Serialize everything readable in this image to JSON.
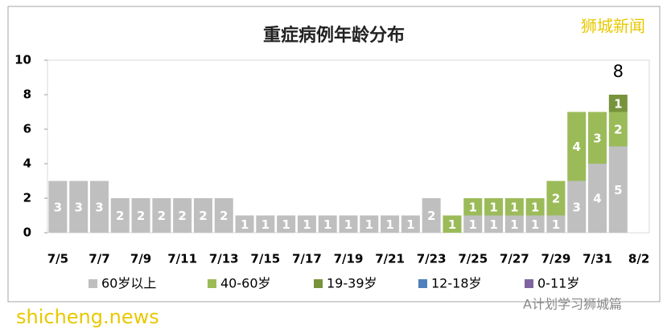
{
  "chart_data": {
    "type": "stacked_bar",
    "title": "重症病例年龄分布",
    "categories": [
      "7/5",
      null,
      "7/7",
      null,
      "7/9",
      null,
      "7/11",
      null,
      "7/13",
      null,
      "7/15",
      null,
      "7/17",
      null,
      "7/19",
      null,
      "7/21",
      null,
      "7/23",
      null,
      "7/25",
      null,
      "7/27",
      null,
      "7/29",
      null,
      "7/31",
      null,
      "8/2"
    ],
    "series": [
      {
        "name": "60岁以上",
        "color": "#bfbfbf",
        "values": [
          3,
          3,
          3,
          2,
          2,
          2,
          2,
          2,
          2,
          1,
          1,
          1,
          1,
          1,
          1,
          1,
          1,
          1,
          2,
          0,
          1,
          1,
          1,
          1,
          1,
          3,
          4,
          5,
          0
        ]
      },
      {
        "name": "40-60岁",
        "color": "#9bbb59",
        "values": [
          0,
          0,
          0,
          0,
          0,
          0,
          0,
          0,
          0,
          0,
          0,
          0,
          0,
          0,
          0,
          0,
          0,
          0,
          0,
          1,
          1,
          1,
          1,
          1,
          2,
          4,
          3,
          2,
          0
        ]
      },
      {
        "name": "19-39岁",
        "color": "#77933c",
        "values": [
          0,
          0,
          0,
          0,
          0,
          0,
          0,
          0,
          0,
          0,
          0,
          0,
          0,
          0,
          0,
          0,
          0,
          0,
          0,
          0,
          0,
          0,
          0,
          0,
          0,
          0,
          0,
          1,
          0
        ]
      },
      {
        "name": "12-18岁",
        "color": "#4f81bd",
        "values": [
          0,
          0,
          0,
          0,
          0,
          0,
          0,
          0,
          0,
          0,
          0,
          0,
          0,
          0,
          0,
          0,
          0,
          0,
          0,
          0,
          0,
          0,
          0,
          0,
          0,
          0,
          0,
          0,
          0
        ]
      },
      {
        "name": "0-11岁",
        "color": "#8064a2",
        "values": [
          0,
          0,
          0,
          0,
          0,
          0,
          0,
          0,
          0,
          0,
          0,
          0,
          0,
          0,
          0,
          0,
          0,
          0,
          0,
          0,
          0,
          0,
          0,
          0,
          0,
          0,
          0,
          0,
          0
        ]
      }
    ],
    "ylim": [
      0,
      10
    ],
    "yticks": [
      0,
      2,
      4,
      6,
      8,
      10
    ],
    "annotation": "8",
    "watermarks": [
      "狮城新闻",
      "shicheng.news",
      "A计划学习狮城篇"
    ]
  }
}
